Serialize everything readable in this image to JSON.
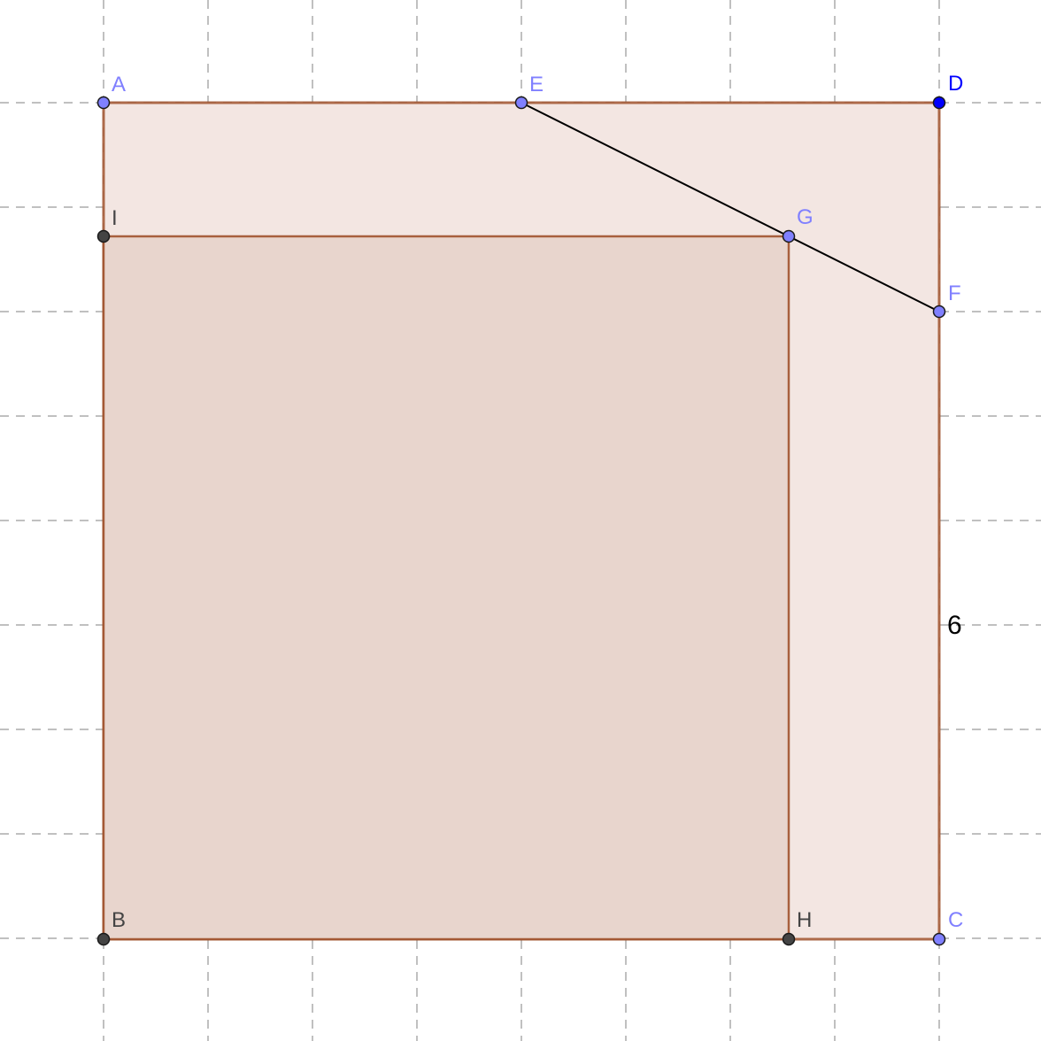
{
  "figure": {
    "points": {
      "A": {
        "label": "A",
        "color": "#8080ff",
        "label_color": "#8080ff"
      },
      "E": {
        "label": "E",
        "color": "#8080ff",
        "label_color": "#8080ff"
      },
      "D": {
        "label": "D",
        "color": "#0000ff",
        "label_color": "#0000ff"
      },
      "I": {
        "label": "I",
        "color": "#444444",
        "label_color": "#444444"
      },
      "G": {
        "label": "G",
        "color": "#8080ff",
        "label_color": "#8080ff"
      },
      "F": {
        "label": "F",
        "color": "#8080ff",
        "label_color": "#8080ff"
      },
      "B": {
        "label": "B",
        "color": "#444444",
        "label_color": "#444444"
      },
      "H": {
        "label": "H",
        "color": "#444444",
        "label_color": "#444444"
      },
      "C": {
        "label": "C",
        "color": "#8080ff",
        "label_color": "#8080ff"
      }
    },
    "side_length_label": "6",
    "colors": {
      "outer_fill": "#f3e6e2",
      "inner_fill": "#e8d5cd",
      "edge": "#a0522d",
      "segment": "#000000",
      "grid": "#c0c0c0"
    }
  }
}
